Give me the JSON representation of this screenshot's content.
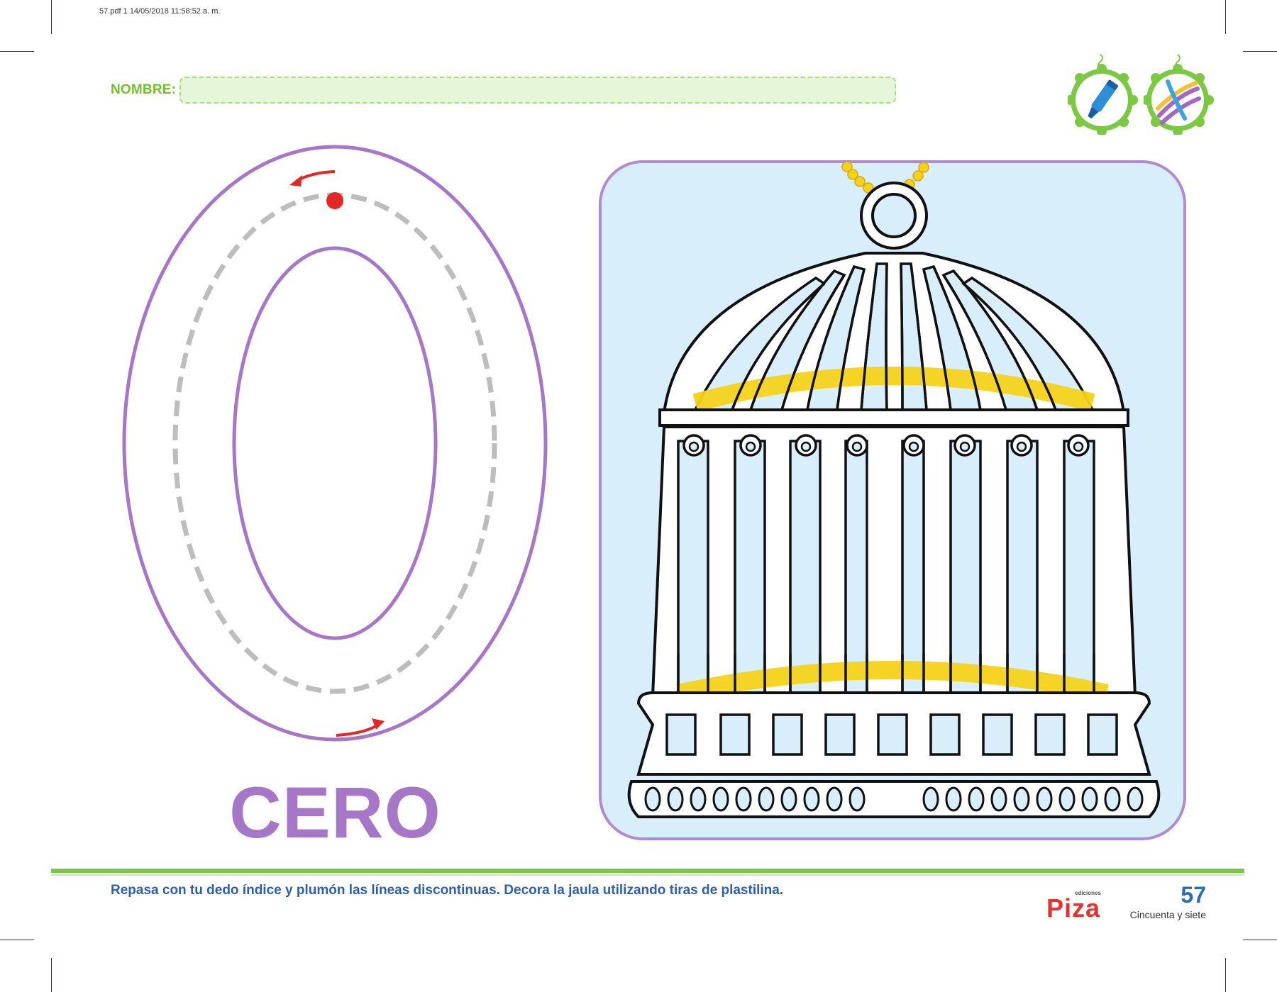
{
  "header": {
    "print_slug": "57.pdf   1   14/05/2018   11:58:52 a. m.",
    "name_label": "NOMBRE:"
  },
  "tools": [
    {
      "icon": "marker-icon",
      "color": "#2e8fd8"
    },
    {
      "icon": "plasticine-strips-icon",
      "colors": [
        "#f2c230",
        "#a566c9",
        "#3fa3e0"
      ]
    }
  ],
  "number": {
    "word": "CERO",
    "glyph": "0",
    "outline_color": "#a677c7",
    "trace_color": "#bdbdbd",
    "arrow_color": "#e32626"
  },
  "illustration": {
    "subject": "birdcage-icon",
    "panel_color": "#d8eefa",
    "border_color": "#b28ad2",
    "band_color": "#f5d21a"
  },
  "footer": {
    "instruction": "Repasa con tu dedo índice y plumón las líneas discontinuas. Decora la jaula utilizando tiras de plastilina.",
    "brand_small": "ediciones",
    "brand_name": "Piza",
    "page_number": "57",
    "page_word": "Cincuenta y siete"
  }
}
